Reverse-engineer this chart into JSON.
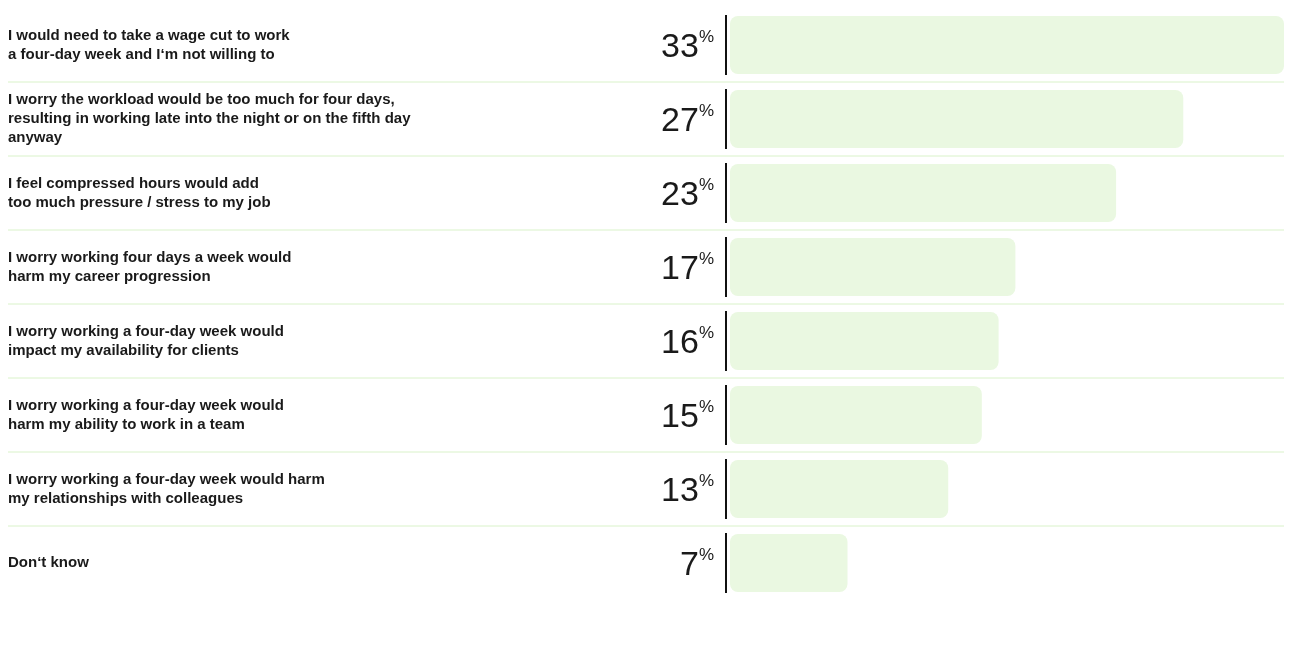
{
  "chart_data": {
    "type": "bar",
    "orientation": "horizontal",
    "categories": [
      "I would need to take a wage cut to work\na four-day week and I‘m not willing to",
      "I worry the workload would be too much for four days,\nresulting in working late into the night or on the fifth day\nanyway",
      "I feel compressed hours would add\ntoo much pressure / stress to my job",
      "I worry working four days a week would\nharm my career progression",
      "I worry working a four-day week would\nimpact my availability for clients",
      "I worry working a four-day week would\nharm my ability to work in a team",
      "I worry working a four-day week would harm\nmy relationships with colleagues",
      "Don‘t know"
    ],
    "values": [
      33,
      27,
      23,
      17,
      16,
      15,
      13,
      7
    ],
    "value_labels": [
      "33$^{%}$",
      "27$^{%}$",
      "23$^{%}$",
      "17$^{%}$",
      "16$^{%}$",
      "15$^{%}$",
      "13$^{%}$",
      "7$^{%}$"
    ],
    "color": "#eaf8e1",
    "grid": "y"
  }
}
